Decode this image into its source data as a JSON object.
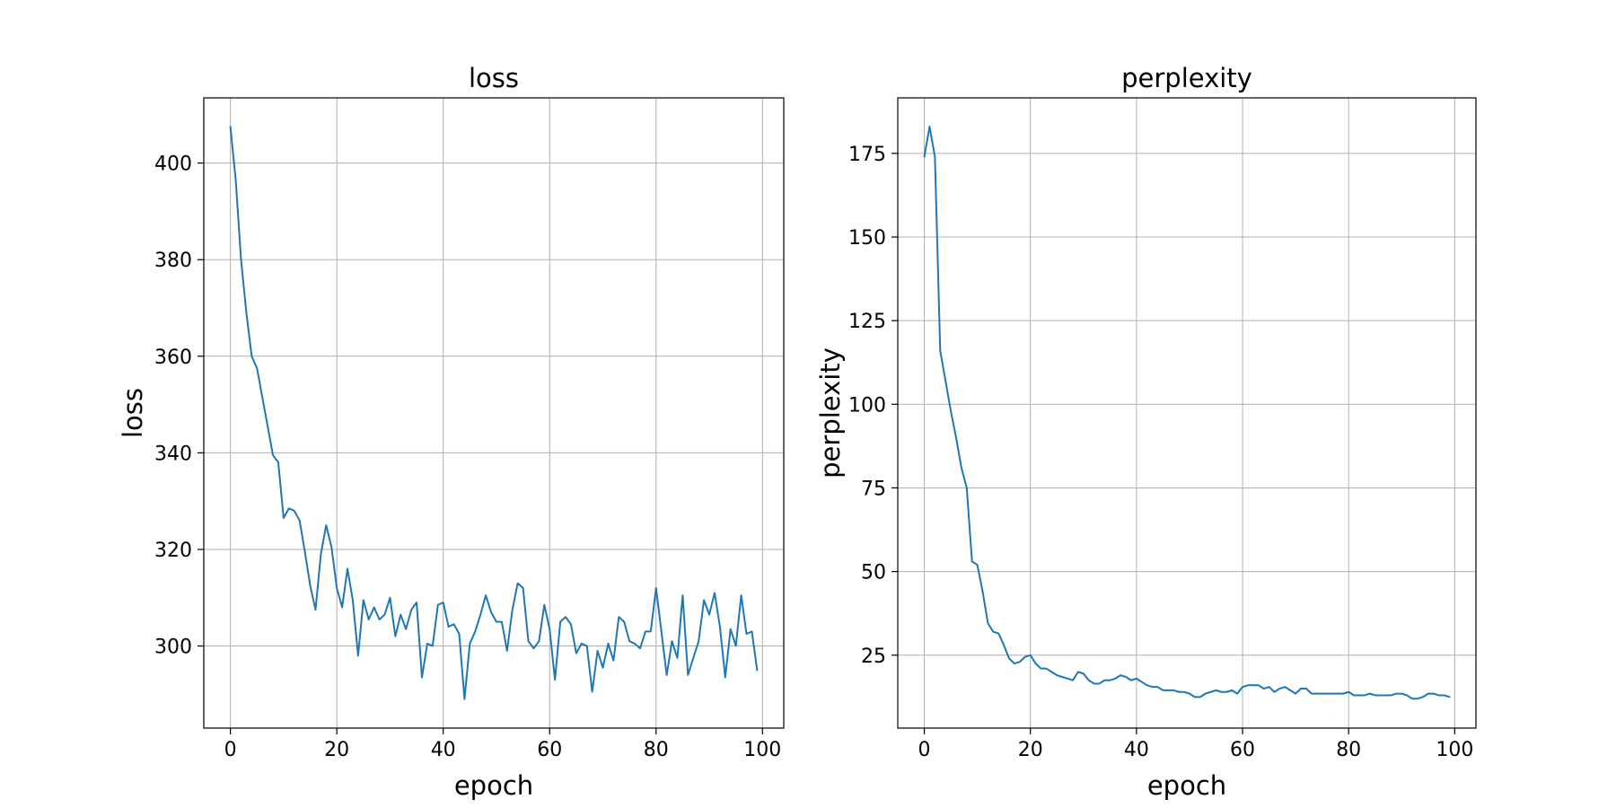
{
  "chart_data": [
    {
      "type": "line",
      "title": "loss",
      "xlabel": "epoch",
      "ylabel": "loss",
      "xlim": [
        -5,
        104
      ],
      "ylim": [
        283,
        413.5
      ],
      "xticks": [
        0,
        20,
        40,
        60,
        80,
        100
      ],
      "yticks": [
        300,
        320,
        340,
        360,
        380,
        400
      ],
      "grid": true,
      "color": "#1f77b4",
      "series": [
        {
          "values": [
            407.5,
            396.5,
            380,
            369,
            360,
            357.5,
            351.5,
            345.5,
            339.5,
            338,
            326.5,
            328.5,
            328,
            326,
            319.5,
            312.5,
            307.5,
            319,
            325,
            320.5,
            312,
            308,
            316,
            309.5,
            298,
            309.5,
            305.5,
            308,
            305.5,
            306.5,
            310,
            302,
            306.5,
            303.5,
            307.5,
            309,
            293.5,
            300.5,
            300,
            308.5,
            309,
            304,
            304.5,
            302.5,
            289,
            300.5,
            303,
            306.5,
            310.5,
            307,
            305,
            305,
            299,
            307.5,
            313,
            312,
            301,
            299.5,
            301,
            308.5,
            303.5,
            293,
            305,
            306,
            304.5,
            298.5,
            300.5,
            300,
            290.5,
            299,
            295.5,
            300.5,
            297,
            306,
            305,
            301,
            300.5,
            299.5,
            303,
            303,
            312,
            303,
            294,
            301,
            297.5,
            310.5,
            294,
            297.5,
            301,
            309.5,
            306.5,
            311,
            304,
            293.5,
            303.5,
            300,
            310.5,
            302.5,
            303,
            295
          ]
        }
      ]
    },
    {
      "type": "line",
      "title": "perplexity",
      "xlabel": "epoch",
      "ylabel": "perplexity",
      "xlim": [
        -5,
        104
      ],
      "ylim": [
        3.2,
        191.6
      ],
      "xticks": [
        0,
        20,
        40,
        60,
        80,
        100
      ],
      "yticks": [
        25,
        50,
        75,
        100,
        125,
        150,
        175
      ],
      "grid": true,
      "color": "#1f77b4",
      "series": [
        {
          "values": [
            174,
            183,
            174,
            116,
            107,
            98,
            90,
            81,
            75,
            53,
            52,
            44,
            34.5,
            32,
            31.5,
            28,
            24,
            22.5,
            23,
            24.5,
            25,
            22.5,
            21,
            21,
            20,
            19,
            18.5,
            18,
            17.5,
            20,
            19.5,
            17.5,
            16.5,
            16.5,
            17.5,
            17.5,
            18,
            19,
            18.5,
            17.5,
            18,
            17,
            16,
            15.5,
            15.5,
            14.5,
            14.5,
            14.5,
            14,
            14,
            13.5,
            12.5,
            12.5,
            13.5,
            14,
            14.5,
            14,
            14,
            14.5,
            13.5,
            15.5,
            16,
            16,
            16,
            15,
            15.5,
            14,
            15,
            15.5,
            14.5,
            13.5,
            15,
            15,
            13.5,
            13.5,
            13.5,
            13.5,
            13.5,
            13.5,
            13.5,
            14,
            13,
            13,
            13,
            13.5,
            13,
            13,
            13,
            13,
            13.5,
            13.5,
            13,
            12,
            12,
            12.5,
            13.5,
            13.5,
            13,
            13,
            12.5
          ]
        }
      ]
    }
  ]
}
